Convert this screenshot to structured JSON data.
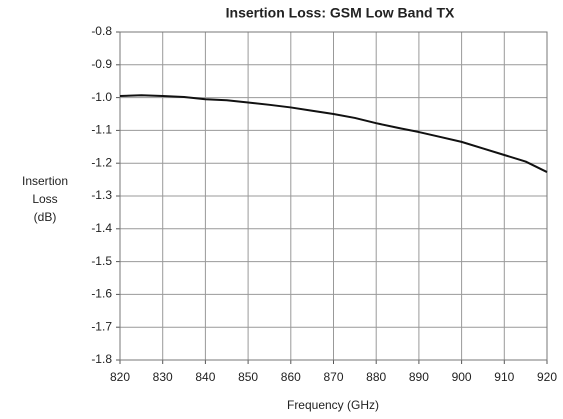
{
  "chart_data": {
    "type": "line",
    "title": "Insertion Loss: GSM Low Band TX",
    "xlabel": "Frequency (GHz)",
    "ylabel_lines": [
      "Insertion",
      "Loss",
      "(dB)"
    ],
    "x": [
      820,
      825,
      830,
      835,
      840,
      845,
      850,
      855,
      860,
      865,
      870,
      875,
      880,
      885,
      890,
      895,
      900,
      905,
      910,
      915,
      920
    ],
    "series": [
      {
        "color": "#111111",
        "values": [
          -0.995,
          -0.993,
          -0.995,
          -0.998,
          -1.005,
          -1.008,
          -1.015,
          -1.022,
          -1.03,
          -1.04,
          -1.05,
          -1.062,
          -1.078,
          -1.092,
          -1.105,
          -1.12,
          -1.135,
          -1.155,
          -1.175,
          -1.195,
          -1.227
        ]
      }
    ],
    "xlim": [
      820,
      920
    ],
    "xticks": [
      820,
      830,
      840,
      850,
      860,
      870,
      880,
      890,
      900,
      910,
      920
    ],
    "ylim": [
      -1.8,
      -0.8
    ],
    "yticks": [
      -1.8,
      -1.7,
      -1.6,
      -1.5,
      -1.4,
      -1.3,
      -1.2,
      -1.1,
      {
        "value": -1,
        "label": "-1.0"
      },
      -0.9,
      -0.8
    ],
    "grid": true
  }
}
